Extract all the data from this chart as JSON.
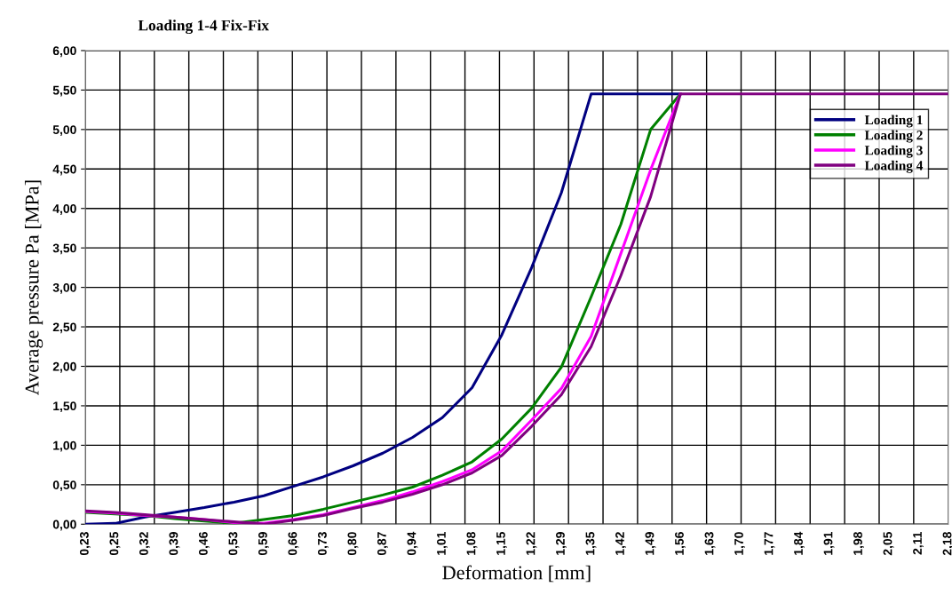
{
  "chart_data": {
    "type": "line",
    "title": "Loading 1-4 Fix-Fix",
    "xlabel": "Deformation [mm]",
    "ylabel": "Average pressure Pa [MPa]",
    "categories": [
      "0,23",
      "0,25",
      "0,32",
      "0,39",
      "0,46",
      "0,53",
      "0,59",
      "0,66",
      "0,73",
      "0,80",
      "0,87",
      "0,94",
      "1,01",
      "1,08",
      "1,15",
      "1,22",
      "1,29",
      "1,35",
      "1,42",
      "1,49",
      "1,56",
      "1,63",
      "1,70",
      "1,77",
      "1,84",
      "1,91",
      "1,98",
      "2,05",
      "2,11",
      "2,18"
    ],
    "series": [
      {
        "name": "Loading 1",
        "color": "#000080",
        "values": [
          0,
          0.01,
          0.09,
          0.15,
          0.21,
          0.28,
          0.36,
          0.48,
          0.6,
          0.74,
          0.9,
          1.1,
          1.35,
          1.73,
          2.4,
          3.25,
          4.2,
          5.45,
          5.45,
          5.45,
          5.45,
          null,
          null,
          null,
          null,
          null,
          null,
          null,
          null,
          null
        ]
      },
      {
        "name": "Loading 2",
        "color": "#008000",
        "values": [
          0.15,
          0.13,
          0.11,
          0.07,
          0.04,
          0.01,
          0.06,
          0.11,
          0.19,
          0.28,
          0.37,
          0.47,
          0.62,
          0.79,
          1.08,
          1.47,
          1.99,
          2.88,
          3.8,
          5.0,
          5.45,
          null,
          null,
          null,
          null,
          null,
          null,
          null,
          null,
          null
        ]
      },
      {
        "name": "Loading 3",
        "color": "#ff00ff",
        "values": [
          0.16,
          0.14,
          0.11,
          0.09,
          0.06,
          0.02,
          0.01,
          0.06,
          0.12,
          0.21,
          0.3,
          0.41,
          0.54,
          0.69,
          0.93,
          1.32,
          1.72,
          2.38,
          3.43,
          4.49,
          5.45,
          null,
          null,
          null,
          null,
          null,
          null,
          null,
          null,
          null
        ]
      },
      {
        "name": "Loading 4",
        "color": "#800080",
        "values": [
          0.17,
          0.15,
          0.12,
          0.09,
          0.06,
          0.03,
          0,
          0.05,
          0.11,
          0.2,
          0.28,
          0.38,
          0.5,
          0.65,
          0.87,
          1.24,
          1.64,
          2.25,
          3.15,
          4.15,
          5.45,
          5.45,
          5.45,
          5.45,
          5.45,
          5.45,
          5.45,
          5.45,
          5.45,
          5.45
        ]
      }
    ],
    "ylim": [
      0,
      6
    ],
    "yticks": [
      {
        "value": 0,
        "label": "0,00"
      },
      {
        "value": 0.5,
        "label": "0,50"
      },
      {
        "value": 1,
        "label": "1,00"
      },
      {
        "value": 1.5,
        "label": "1,50"
      },
      {
        "value": 2,
        "label": "2,00"
      },
      {
        "value": 2.5,
        "label": "2,50"
      },
      {
        "value": 3,
        "label": "3,00"
      },
      {
        "value": 3.5,
        "label": "3,50"
      },
      {
        "value": 4,
        "label": "4,00"
      },
      {
        "value": 4.5,
        "label": "4,50"
      },
      {
        "value": 5,
        "label": "5,00"
      },
      {
        "value": 5.5,
        "label": "5,50"
      },
      {
        "value": 6,
        "label": "6,00"
      }
    ],
    "grid": true,
    "legend": "top right",
    "marker": "none",
    "line_style": "solid"
  }
}
